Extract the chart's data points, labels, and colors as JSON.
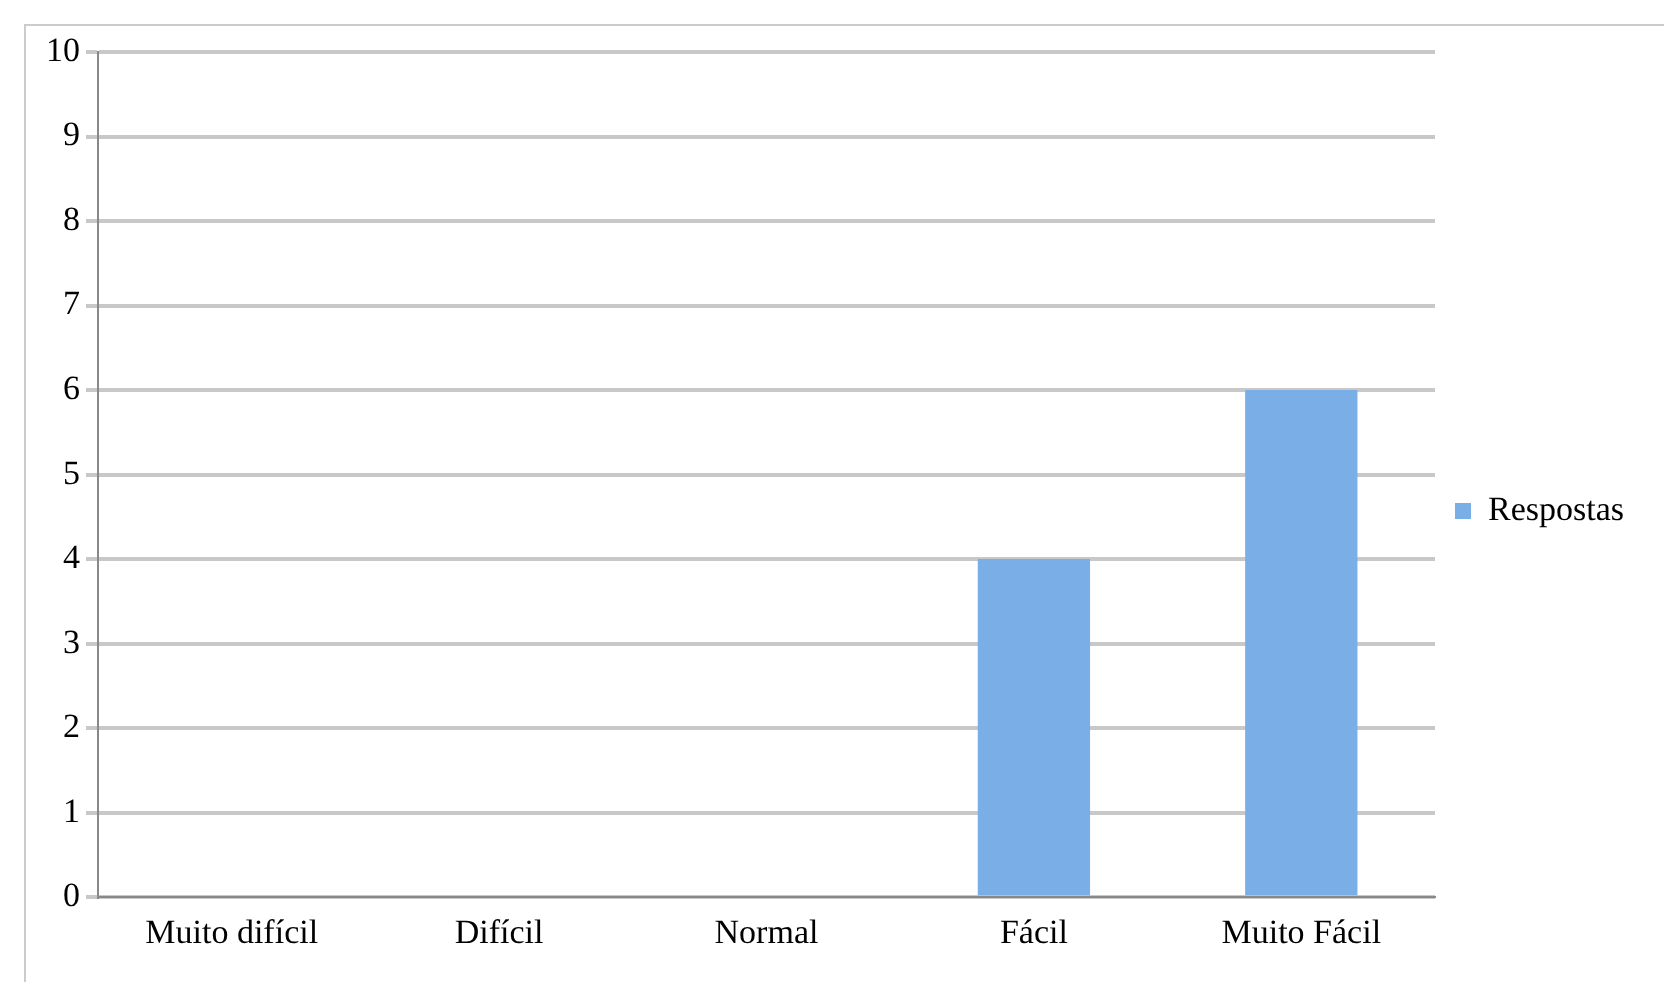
{
  "chart_data": {
    "type": "bar",
    "categories": [
      "Muito difícil",
      "Difícil",
      "Normal",
      "Fácil",
      "Muito Fácil"
    ],
    "series": [
      {
        "name": "Respostas",
        "color": "#7aaee6",
        "values": [
          0,
          0,
          0,
          4,
          6
        ]
      }
    ],
    "ylim": [
      0,
      10
    ],
    "yticks": [
      0,
      1,
      2,
      3,
      4,
      5,
      6,
      7,
      8,
      9,
      10
    ],
    "grid": "y",
    "legend": "right"
  }
}
